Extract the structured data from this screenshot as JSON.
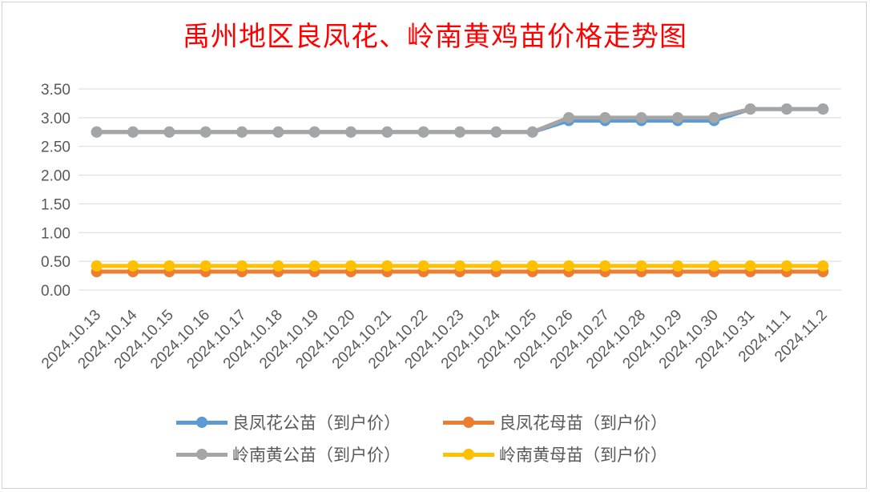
{
  "chart_data": {
    "type": "line",
    "title": "禹州地区良凤花、岭南黄鸡苗价格走势图",
    "xlabel": "",
    "ylabel": "",
    "ylim": [
      0,
      3.5
    ],
    "yticks": [
      "0.00",
      "0.50",
      "1.00",
      "1.50",
      "2.00",
      "2.50",
      "3.00",
      "3.50"
    ],
    "grid": true,
    "legend_position": "bottom",
    "categories": [
      "2024.10.13",
      "2024.10.14",
      "2024.10.15",
      "2024.10.16",
      "2024.10.17",
      "2024.10.18",
      "2024.10.19",
      "2024.10.20",
      "2024.10.21",
      "2024.10.22",
      "2024.10.23",
      "2024.10.24",
      "2024.10.25",
      "2024.10.26",
      "2024.10.27",
      "2024.10.28",
      "2024.10.29",
      "2024.10.30",
      "2024.10.31",
      "2024.11.1",
      "2024.11.2"
    ],
    "series": [
      {
        "name": "良凤花公苗（到户价）",
        "color": "#5b9bd5",
        "values": [
          2.75,
          2.75,
          2.75,
          2.75,
          2.75,
          2.75,
          2.75,
          2.75,
          2.75,
          2.75,
          2.75,
          2.75,
          2.75,
          2.95,
          2.95,
          2.95,
          2.95,
          2.95,
          3.15,
          3.15,
          3.15
        ]
      },
      {
        "name": "良凤花母苗（到户价）",
        "color": "#ed7d31",
        "values": [
          0.32,
          0.32,
          0.32,
          0.32,
          0.32,
          0.32,
          0.32,
          0.32,
          0.32,
          0.32,
          0.32,
          0.32,
          0.32,
          0.32,
          0.32,
          0.32,
          0.32,
          0.32,
          0.32,
          0.32,
          0.32
        ]
      },
      {
        "name": "岭南黄公苗（到户价）",
        "color": "#a5a5a5",
        "values": [
          2.75,
          2.75,
          2.75,
          2.75,
          2.75,
          2.75,
          2.75,
          2.75,
          2.75,
          2.75,
          2.75,
          2.75,
          2.75,
          3.0,
          3.0,
          3.0,
          3.0,
          3.0,
          3.15,
          3.15,
          3.15
        ]
      },
      {
        "name": "岭南黄母苗（到户价）",
        "color": "#ffc000",
        "values": [
          0.42,
          0.42,
          0.42,
          0.42,
          0.42,
          0.42,
          0.42,
          0.42,
          0.42,
          0.42,
          0.42,
          0.42,
          0.42,
          0.42,
          0.42,
          0.42,
          0.42,
          0.42,
          0.42,
          0.42,
          0.42
        ]
      }
    ]
  }
}
